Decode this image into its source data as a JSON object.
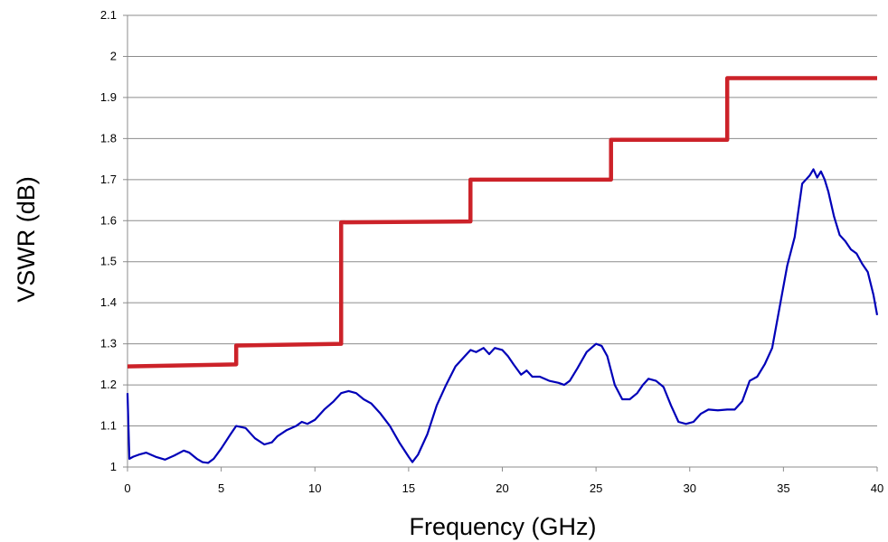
{
  "chart_data": {
    "type": "line",
    "title": "",
    "xlabel": "Frequency (GHz)",
    "ylabel": "VSWR (dB)",
    "xlim": [
      0,
      40
    ],
    "ylim": [
      1,
      2.1
    ],
    "x_ticks": [
      "0",
      "5",
      "10",
      "15",
      "20",
      "25",
      "30",
      "35",
      "40"
    ],
    "y_ticks": [
      "1",
      "1.1",
      "1.2",
      "1.3",
      "1.4",
      "1.5",
      "1.6",
      "1.7",
      "1.8",
      "1.9",
      "2",
      "2.1"
    ],
    "grid": "horizontal",
    "legend": "none",
    "series": [
      {
        "color": "#cc2229",
        "style": "step",
        "points": [
          [
            0,
            1.245
          ],
          [
            5.8,
            1.25
          ],
          [
            5.8,
            1.296
          ],
          [
            11.4,
            1.3
          ],
          [
            11.4,
            1.596
          ],
          [
            18.3,
            1.598
          ],
          [
            18.3,
            1.7
          ],
          [
            25.8,
            1.7
          ],
          [
            25.8,
            1.797
          ],
          [
            32,
            1.797
          ],
          [
            32,
            1.947
          ],
          [
            40,
            1.947
          ]
        ]
      },
      {
        "color": "#0000b8",
        "style": "line",
        "points": [
          [
            0,
            1.18
          ],
          [
            0.1,
            1.02
          ],
          [
            0.3,
            1.025
          ],
          [
            0.6,
            1.03
          ],
          [
            1,
            1.035
          ],
          [
            1.5,
            1.025
          ],
          [
            2,
            1.018
          ],
          [
            2.5,
            1.028
          ],
          [
            3,
            1.04
          ],
          [
            3.3,
            1.035
          ],
          [
            3.7,
            1.02
          ],
          [
            4,
            1.012
          ],
          [
            4.3,
            1.01
          ],
          [
            4.6,
            1.02
          ],
          [
            5,
            1.045
          ],
          [
            5.5,
            1.08
          ],
          [
            5.8,
            1.1
          ],
          [
            6.3,
            1.095
          ],
          [
            6.8,
            1.07
          ],
          [
            7.3,
            1.055
          ],
          [
            7.7,
            1.06
          ],
          [
            8,
            1.075
          ],
          [
            8.5,
            1.09
          ],
          [
            9,
            1.1
          ],
          [
            9.3,
            1.11
          ],
          [
            9.6,
            1.105
          ],
          [
            10,
            1.115
          ],
          [
            10.5,
            1.14
          ],
          [
            11,
            1.16
          ],
          [
            11.4,
            1.18
          ],
          [
            11.8,
            1.185
          ],
          [
            12.2,
            1.18
          ],
          [
            12.6,
            1.165
          ],
          [
            13,
            1.155
          ],
          [
            13.5,
            1.13
          ],
          [
            14,
            1.1
          ],
          [
            14.5,
            1.06
          ],
          [
            15,
            1.025
          ],
          [
            15.2,
            1.012
          ],
          [
            15.5,
            1.03
          ],
          [
            16,
            1.08
          ],
          [
            16.5,
            1.15
          ],
          [
            17,
            1.2
          ],
          [
            17.5,
            1.245
          ],
          [
            18,
            1.27
          ],
          [
            18.3,
            1.285
          ],
          [
            18.6,
            1.28
          ],
          [
            19,
            1.29
          ],
          [
            19.3,
            1.275
          ],
          [
            19.6,
            1.29
          ],
          [
            20,
            1.285
          ],
          [
            20.3,
            1.27
          ],
          [
            20.6,
            1.25
          ],
          [
            21,
            1.225
          ],
          [
            21.3,
            1.235
          ],
          [
            21.6,
            1.22
          ],
          [
            22,
            1.22
          ],
          [
            22.5,
            1.21
          ],
          [
            23,
            1.205
          ],
          [
            23.3,
            1.2
          ],
          [
            23.6,
            1.21
          ],
          [
            24,
            1.24
          ],
          [
            24.5,
            1.28
          ],
          [
            25,
            1.3
          ],
          [
            25.3,
            1.295
          ],
          [
            25.6,
            1.27
          ],
          [
            26,
            1.2
          ],
          [
            26.4,
            1.165
          ],
          [
            26.8,
            1.165
          ],
          [
            27.2,
            1.18
          ],
          [
            27.5,
            1.2
          ],
          [
            27.8,
            1.215
          ],
          [
            28.2,
            1.21
          ],
          [
            28.6,
            1.195
          ],
          [
            29,
            1.15
          ],
          [
            29.4,
            1.11
          ],
          [
            29.8,
            1.105
          ],
          [
            30.2,
            1.11
          ],
          [
            30.6,
            1.13
          ],
          [
            31,
            1.14
          ],
          [
            31.5,
            1.138
          ],
          [
            32,
            1.14
          ],
          [
            32.4,
            1.14
          ],
          [
            32.8,
            1.16
          ],
          [
            33.2,
            1.21
          ],
          [
            33.6,
            1.22
          ],
          [
            34,
            1.25
          ],
          [
            34.4,
            1.29
          ],
          [
            34.8,
            1.39
          ],
          [
            35.2,
            1.49
          ],
          [
            35.6,
            1.56
          ],
          [
            36,
            1.69
          ],
          [
            36.2,
            1.7
          ],
          [
            36.4,
            1.71
          ],
          [
            36.6,
            1.725
          ],
          [
            36.8,
            1.705
          ],
          [
            37,
            1.72
          ],
          [
            37.2,
            1.7
          ],
          [
            37.4,
            1.67
          ],
          [
            37.7,
            1.61
          ],
          [
            38,
            1.565
          ],
          [
            38.3,
            1.55
          ],
          [
            38.6,
            1.53
          ],
          [
            38.9,
            1.52
          ],
          [
            39.2,
            1.495
          ],
          [
            39.5,
            1.475
          ],
          [
            39.8,
            1.42
          ],
          [
            40,
            1.37
          ]
        ]
      }
    ]
  }
}
